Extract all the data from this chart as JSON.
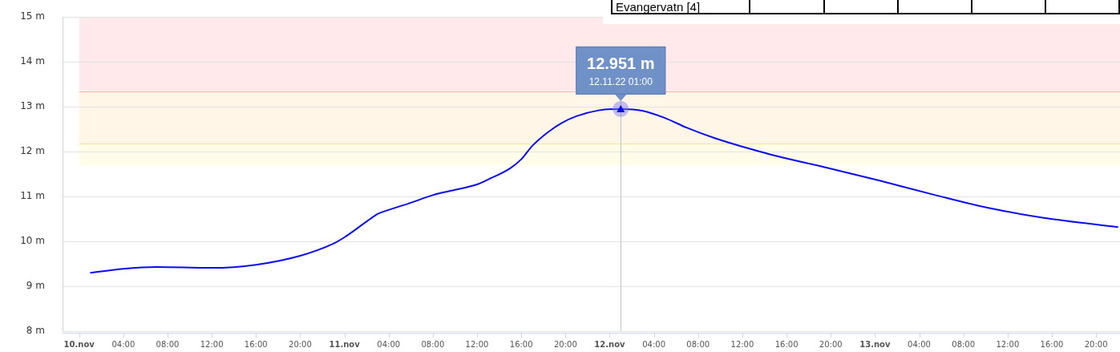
{
  "chart_data": {
    "type": "line",
    "x": [
      "--11-10T01:00",
      "--11-10T04:00",
      "--11-10T07:00",
      "--11-10T12:00",
      "--11-10T16:00",
      "--11-10T20:00",
      "--11-10T23:00",
      "--11-11T00:00",
      "--11-11T02:00",
      "--11-11T03:00",
      "--11-11T04:30",
      "--11-11T06:00",
      "--11-11T08:00",
      "--11-11T09:40",
      "--11-11T12:00",
      "--11-11T13:00",
      "--11-11T15:00",
      "--11-11T16:00",
      "--11-11T17:00",
      "--11-11T18:30",
      "--11-11T19:40",
      "--11-11T21:00",
      "--11-11T23:00",
      "--11-12T01:00",
      "--11-12T03:00",
      "--11-12T05:00",
      "--11-12T07:00",
      "--11-12T09:30",
      "--11-12T14:30",
      "--11-12T19:30",
      "--11-13T00:30",
      "--11-13T05:20",
      "--11-13T10:10",
      "--11-13T15:10",
      "--11-13T22:00"
    ],
    "series": [
      {
        "color": "#0a0af0",
        "values": [
          9.3,
          9.39,
          9.43,
          9.41,
          9.48,
          9.68,
          9.95,
          10.09,
          10.44,
          10.61,
          10.74,
          10.86,
          11.03,
          11.13,
          11.27,
          11.38,
          11.63,
          11.83,
          12.13,
          12.45,
          12.64,
          12.79,
          12.92,
          12.951,
          12.91,
          12.75,
          12.53,
          12.3,
          11.94,
          11.65,
          11.35,
          11.04,
          10.75,
          10.53,
          10.32
        ]
      }
    ],
    "xlim": [
      "--11-09T22:30",
      "--11-13T22:10"
    ],
    "xticks": [
      {
        "value": "--11-10T00:00",
        "label": "10.nov"
      },
      {
        "value": "--11-10T04:00",
        "label": "04:00"
      },
      {
        "value": "--11-10T08:00",
        "label": "08:00"
      },
      {
        "value": "--11-10T12:00",
        "label": "12:00"
      },
      {
        "value": "--11-10T16:00",
        "label": "16:00"
      },
      {
        "value": "--11-10T20:00",
        "label": "20:00"
      },
      {
        "value": "--11-11T00:00",
        "label": "11.nov"
      },
      {
        "value": "--11-11T04:00",
        "label": "04:00"
      },
      {
        "value": "--11-11T08:00",
        "label": "08:00"
      },
      {
        "value": "--11-11T12:00",
        "label": "12:00"
      },
      {
        "value": "--11-11T16:00",
        "label": "16:00"
      },
      {
        "value": "--11-11T20:00",
        "label": "20:00"
      },
      {
        "value": "--11-12T00:00",
        "label": "12.nov"
      },
      {
        "value": "--11-12T04:00",
        "label": "04:00"
      },
      {
        "value": "--11-12T08:00",
        "label": "08:00"
      },
      {
        "value": "--11-12T12:00",
        "label": "12:00"
      },
      {
        "value": "--11-12T16:00",
        "label": "16:00"
      },
      {
        "value": "--11-12T20:00",
        "label": "20:00"
      },
      {
        "value": "--11-13T00:00",
        "label": "13.nov"
      },
      {
        "value": "--11-13T04:00",
        "label": "04:00"
      },
      {
        "value": "--11-13T08:00",
        "label": "08:00"
      },
      {
        "value": "--11-13T12:00",
        "label": "12:00"
      },
      {
        "value": "--11-13T16:00",
        "label": "16:00"
      },
      {
        "value": "--11-13T20:00",
        "label": "20:00"
      }
    ],
    "ylim": [
      8,
      15
    ],
    "yticks": [
      {
        "value": 8,
        "label": "8 m"
      },
      {
        "value": 9,
        "label": "9 m"
      },
      {
        "value": 10,
        "label": "10 m"
      },
      {
        "value": 11,
        "label": "11 m"
      },
      {
        "value": 12,
        "label": "12 m"
      },
      {
        "value": 13,
        "label": "13 m"
      },
      {
        "value": 14,
        "label": "14 m"
      },
      {
        "value": 15,
        "label": "15 m"
      }
    ],
    "grid": "y",
    "marker": "none",
    "line_style": "solid",
    "legend": false,
    "bands": [
      {
        "axis": "y",
        "from": 13.35,
        "to": 15,
        "color": "#ffe9ea"
      },
      {
        "axis": "y",
        "from": 12.18,
        "to": 13.35,
        "color": "#fff6e8"
      },
      {
        "axis": "y",
        "from": 11.7,
        "to": 12.18,
        "color": "#fffde9"
      }
    ],
    "ref_lines": [
      {
        "axis": "y",
        "value": 13.35,
        "color": "#f4b0aa"
      },
      {
        "axis": "y",
        "value": 12.18,
        "color": "#f6e690"
      },
      {
        "axis": "x",
        "value": "--11-12T01:00",
        "color": "#c4c4c4"
      }
    ],
    "annotations": [
      {
        "text": "12.951 m",
        "x": "--11-12T01:00",
        "y": 12.951
      },
      {
        "text": "12.11.22 01:00",
        "x": "--11-12T01:00",
        "y": 12.951
      },
      "Evangervatn [4]"
    ]
  }
}
